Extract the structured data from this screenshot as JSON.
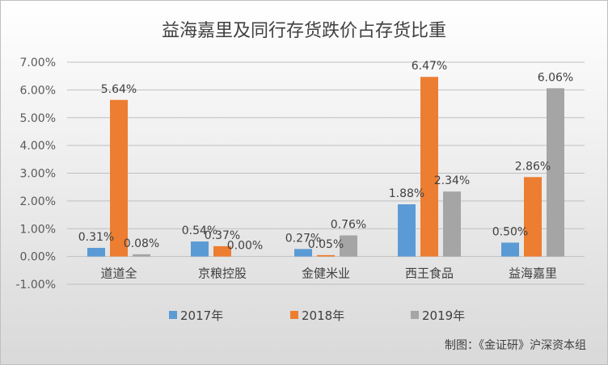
{
  "chart_data": {
    "type": "bar",
    "title": "益海嘉里及同行存货跌价占存货比重",
    "categories": [
      "道道全",
      "京粮控股",
      "金健米业",
      "西王食品",
      "益海嘉里"
    ],
    "series": [
      {
        "name": "2017年",
        "values": [
          0.31,
          0.54,
          0.27,
          1.88,
          0.5
        ],
        "labels": [
          "0.31%",
          "0.54%",
          "0.27%",
          "1.88%",
          "0.50%"
        ]
      },
      {
        "name": "2018年",
        "values": [
          5.64,
          0.37,
          0.05,
          6.47,
          2.86
        ],
        "labels": [
          "5.64%",
          "0.37%",
          "0.05%",
          "6.47%",
          "2.86%"
        ]
      },
      {
        "name": "2019年",
        "values": [
          0.08,
          0.0,
          0.76,
          2.34,
          6.06
        ],
        "labels": [
          "0.08%",
          "0.00%",
          "0.76%",
          "2.34%",
          "6.06%"
        ]
      }
    ],
    "ylim": [
      -1,
      7
    ],
    "yticks": [
      -1,
      0,
      1,
      2,
      3,
      4,
      5,
      6,
      7
    ],
    "ytick_labels": [
      "-1.00%",
      "0.00%",
      "1.00%",
      "2.00%",
      "3.00%",
      "4.00%",
      "5.00%",
      "6.00%",
      "7.00%"
    ],
    "grid": true,
    "legend_position": "bottom",
    "colors": [
      "#5b9bd5",
      "#ed7d31",
      "#a5a5a5"
    ],
    "credit": "制图：《金证研》沪深资本组"
  }
}
